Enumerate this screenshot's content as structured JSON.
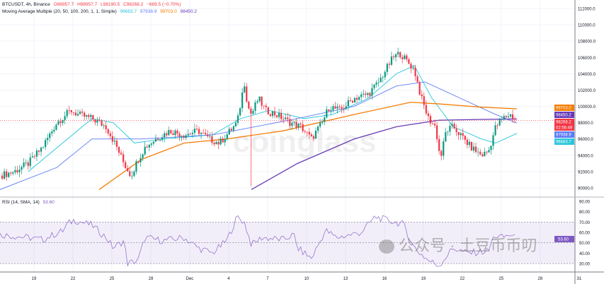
{
  "header": {
    "symbol": "BTCUSDT, 4h, Binance",
    "open": "O98957.7",
    "high": "H98957.7",
    "low": "L98190.5",
    "close": "C98268.2",
    "change": "−689.5 (−0.70%)"
  },
  "ma_legend": {
    "label": "Moving Average Multiple (20, 50, 100, 200, 1, 1, Simple)",
    "v1": "96683.7",
    "v2": "97938.9",
    "v3": "99703.0",
    "v4": "98450.2"
  },
  "rsi_legend": {
    "label": "RSI (14, SMA, 14)",
    "value": "53.60"
  },
  "watermark": {
    "text": "coinglass",
    "wechat": "公众号 · 土豆币币叨"
  },
  "colors": {
    "up": "#089981",
    "down": "#f23645",
    "ma20": "#26c6da",
    "ma50": "#5b7cf7",
    "ma100": "#f57c00",
    "ma200": "#673ab7",
    "rsi": "#9575cd"
  },
  "chart_data": [
    {
      "type": "candlestick",
      "title": "BTCUSDT, 4h, Binance",
      "ylim": [
        89000,
        113000
      ],
      "y_ticks": [
        "90000.0",
        "92000.0",
        "94000.0",
        "96000.0",
        "98000.0",
        "100000.0",
        "102000.0",
        "104000.0",
        "106000.0",
        "108000.0",
        "110000.0",
        "112000.0"
      ],
      "x_ticks": [
        {
          "label": "19",
          "day": -3
        },
        {
          "label": "22",
          "day": 0
        },
        {
          "label": "25",
          "day": 3
        },
        {
          "label": "28",
          "day": 6
        },
        {
          "label": "Dec",
          "day": 9
        },
        {
          "label": "4",
          "day": 12
        },
        {
          "label": "7",
          "day": 15
        },
        {
          "label": "10",
          "day": 18
        },
        {
          "label": "13",
          "day": 21
        },
        {
          "label": "16",
          "day": 24
        },
        {
          "label": "19",
          "day": 27
        },
        {
          "label": "22",
          "day": 30
        },
        {
          "label": "25",
          "day": 33
        },
        {
          "label": "28",
          "day": 36
        },
        {
          "label": "31",
          "day": 39
        }
      ],
      "price_path": [
        [
          -5.62,
          91500
        ],
        [
          -4.53,
          92000
        ],
        [
          -3.44,
          93000
        ],
        [
          -2.35,
          95000
        ],
        [
          -1.25,
          98000
        ],
        [
          -0.16,
          99500
        ],
        [
          0.38,
          99000
        ],
        [
          1.47,
          98500
        ],
        [
          2.56,
          97500
        ],
        [
          3.38,
          95000
        ],
        [
          3.93,
          93000
        ],
        [
          4.47,
          91500
        ],
        [
          5.02,
          93500
        ],
        [
          5.56,
          95000
        ],
        [
          6.38,
          96000
        ],
        [
          7.47,
          97000
        ],
        [
          8.57,
          96500
        ],
        [
          9.66,
          97000
        ],
        [
          10.47,
          96000
        ],
        [
          11.29,
          95500
        ],
        [
          12.11,
          97000
        ],
        [
          12.66,
          98000
        ],
        [
          13.2,
          103000
        ],
        [
          13.47,
          100000
        ],
        [
          13.75,
          99000
        ],
        [
          14.29,
          101000
        ],
        [
          14.84,
          99500
        ],
        [
          15.66,
          99000
        ],
        [
          16.75,
          98000
        ],
        [
          17.57,
          97500
        ],
        [
          18.38,
          96000
        ],
        [
          19.2,
          98000
        ],
        [
          19.75,
          100000
        ],
        [
          20.57,
          99500
        ],
        [
          21.66,
          101000
        ],
        [
          22.75,
          101500
        ],
        [
          23.57,
          103000
        ],
        [
          24.11,
          104500
        ],
        [
          24.66,
          106000
        ],
        [
          25.2,
          106500
        ],
        [
          25.75,
          105500
        ],
        [
          26.3,
          104500
        ],
        [
          26.84,
          101000
        ],
        [
          27.39,
          98500
        ],
        [
          27.93,
          97500
        ],
        [
          28.31,
          93500
        ],
        [
          28.75,
          97000
        ],
        [
          29.3,
          97500
        ],
        [
          30.11,
          96000
        ],
        [
          30.66,
          95000
        ],
        [
          31.48,
          94000
        ],
        [
          32.02,
          94500
        ],
        [
          32.57,
          97500
        ],
        [
          33.11,
          98500
        ],
        [
          33.66,
          99000
        ],
        [
          34.2,
          98268.2
        ]
      ],
      "spike_low": {
        "day": 13.75,
        "low": 90200
      },
      "last_price": 98268.2,
      "countdown": "02:56:49",
      "series": [
        {
          "name": "MA20",
          "value": "96683.7",
          "points": [
            [
              -3.44,
              92000
            ],
            [
              1.47,
              98500
            ],
            [
              3.11,
              98000
            ],
            [
              4.75,
              95500
            ],
            [
              6.93,
              96000
            ],
            [
              10.75,
              96500
            ],
            [
              12.93,
              98500
            ],
            [
              15.11,
              99500
            ],
            [
              17.84,
              98500
            ],
            [
              20.02,
              99000
            ],
            [
              22.75,
              101000
            ],
            [
              24.93,
              104000
            ],
            [
              26.3,
              105000
            ],
            [
              27.66,
              101000
            ],
            [
              29.3,
              97500
            ],
            [
              31.48,
              96000
            ],
            [
              32.57,
              95500
            ],
            [
              34.2,
              96683.7
            ]
          ]
        },
        {
          "name": "MA50",
          "value": "97938.9",
          "points": [
            [
              -5.62,
              89800
            ],
            [
              -1.25,
              92500
            ],
            [
              1.47,
              96000
            ],
            [
              5.29,
              96000
            ],
            [
              10.75,
              96500
            ],
            [
              14.02,
              97500
            ],
            [
              17.3,
              98500
            ],
            [
              21.66,
              100000
            ],
            [
              24.93,
              102500
            ],
            [
              27.11,
              103000
            ],
            [
              29.84,
              101000
            ],
            [
              32.57,
              99000
            ],
            [
              34.2,
              97938.9
            ]
          ]
        },
        {
          "name": "MA100",
          "value": "99703.0",
          "points": [
            [
              2.02,
              89800
            ],
            [
              5.29,
              93500
            ],
            [
              8.57,
              95500
            ],
            [
              11.84,
              96000
            ],
            [
              16.2,
              97000
            ],
            [
              21.66,
              99000
            ],
            [
              26.02,
              100500
            ],
            [
              28.2,
              100300
            ],
            [
              31.48,
              99900
            ],
            [
              34.2,
              99703.0
            ]
          ]
        },
        {
          "name": "MA200",
          "value": "98450.2",
          "points": [
            [
              13.75,
              89800
            ],
            [
              17.3,
              93000
            ],
            [
              21.66,
              96000
            ],
            [
              24.93,
              97500
            ],
            [
              28.2,
              98300
            ],
            [
              31.48,
              98400
            ],
            [
              34.2,
              98450.2
            ]
          ]
        }
      ]
    },
    {
      "type": "line",
      "title": "RSI (14, SMA, 14)",
      "ylim": [
        25,
        92
      ],
      "y_ticks": [
        "30.00",
        "40.00",
        "50.00",
        "60.00",
        "70.00",
        "80.00",
        "90.00"
      ],
      "bands": [
        30,
        50,
        70
      ],
      "last": "53.60",
      "points": [
        [
          -5.62,
          58
        ],
        [
          -3.44,
          55
        ],
        [
          -2.35,
          53
        ],
        [
          -0.71,
          62
        ],
        [
          -0.44,
          68
        ],
        [
          0.11,
          72
        ],
        [
          1.47,
          67
        ],
        [
          2.56,
          55
        ],
        [
          3.11,
          45
        ],
        [
          3.93,
          52
        ],
        [
          4.2,
          30
        ],
        [
          5.02,
          33
        ],
        [
          5.56,
          55
        ],
        [
          6.93,
          52
        ],
        [
          8.56,
          55
        ],
        [
          9.66,
          45
        ],
        [
          10.75,
          40
        ],
        [
          11.84,
          52
        ],
        [
          12.66,
          75
        ],
        [
          13.2,
          70
        ],
        [
          13.75,
          48
        ],
        [
          14.56,
          55
        ],
        [
          16.2,
          53
        ],
        [
          17.02,
          58
        ],
        [
          17.29,
          45
        ],
        [
          17.84,
          40
        ],
        [
          18.38,
          35
        ],
        [
          19.47,
          62
        ],
        [
          20.29,
          55
        ],
        [
          21.11,
          57
        ],
        [
          22.2,
          60
        ],
        [
          23.29,
          75
        ],
        [
          24.11,
          72
        ],
        [
          25.47,
          68
        ],
        [
          26.02,
          50
        ],
        [
          26.57,
          42
        ],
        [
          27.38,
          33
        ],
        [
          28.2,
          28
        ],
        [
          29.29,
          45
        ],
        [
          30.38,
          40
        ],
        [
          32.02,
          42
        ],
        [
          32.46,
          57
        ],
        [
          33.11,
          55
        ],
        [
          33.66,
          58
        ],
        [
          34.2,
          53.6
        ]
      ]
    }
  ]
}
